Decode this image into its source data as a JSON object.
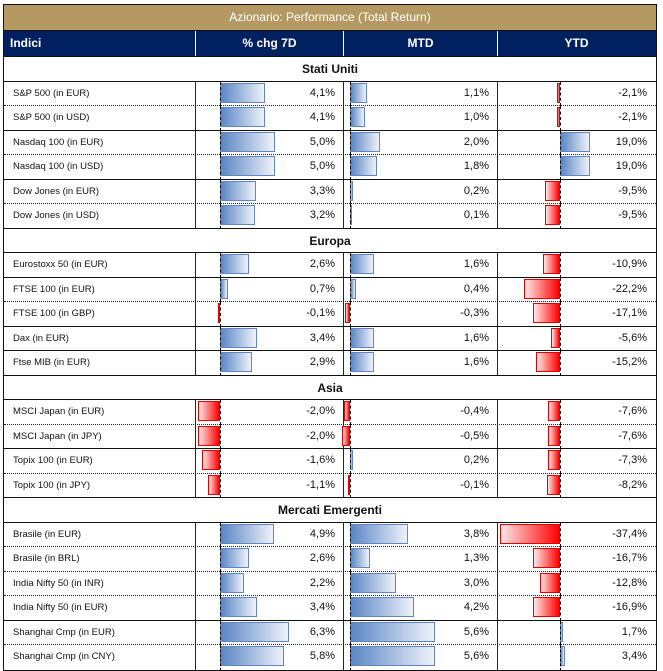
{
  "title": "Azionario: Performance (Total Return)",
  "columns": [
    "Indici",
    "% chg 7D",
    "MTD",
    "YTD"
  ],
  "colors": {
    "title_bg": "#b49a62",
    "header_bg": "#002060",
    "positive": "#5a86c5",
    "negative": "#ff0000"
  },
  "sections": [
    {
      "name": "Stati Uniti",
      "rows": [
        {
          "label": "S&P 500 (in EUR)",
          "d7": "4,1%",
          "mtd": "1,1%",
          "ytd": "-2,1%",
          "v": [
            4.1,
            1.1,
            -2.1
          ]
        },
        {
          "label": "S&P 500 (in USD)",
          "d7": "4,1%",
          "mtd": "1,0%",
          "ytd": "-2,1%",
          "v": [
            4.1,
            1.0,
            -2.1
          ]
        },
        {
          "label": "Nasdaq 100 (in EUR)",
          "d7": "5,0%",
          "mtd": "2,0%",
          "ytd": "19,0%",
          "v": [
            5.0,
            2.0,
            19.0
          ]
        },
        {
          "label": "Nasdaq 100 (in USD)",
          "d7": "5,0%",
          "mtd": "1,8%",
          "ytd": "19,0%",
          "v": [
            5.0,
            1.8,
            19.0
          ]
        },
        {
          "label": "Dow Jones (in EUR)",
          "d7": "3,3%",
          "mtd": "0,2%",
          "ytd": "-9,5%",
          "v": [
            3.3,
            0.2,
            -9.5
          ]
        },
        {
          "label": "Dow Jones (in USD)",
          "d7": "3,2%",
          "mtd": "0,1%",
          "ytd": "-9,5%",
          "v": [
            3.2,
            0.1,
            -9.5
          ]
        }
      ]
    },
    {
      "name": "Europa",
      "rows": [
        {
          "label": "Eurostoxx 50 (in EUR)",
          "d7": "2,6%",
          "mtd": "1,6%",
          "ytd": "-10,9%",
          "v": [
            2.6,
            1.6,
            -10.9
          ]
        },
        {
          "label": "FTSE 100 (in EUR)",
          "d7": "0,7%",
          "mtd": "0,4%",
          "ytd": "-22,2%",
          "v": [
            0.7,
            0.4,
            -22.2
          ]
        },
        {
          "label": "FTSE 100 (in GBP)",
          "d7": "-0,1%",
          "mtd": "-0,3%",
          "ytd": "-17,1%",
          "v": [
            -0.1,
            -0.3,
            -17.1
          ]
        },
        {
          "label": "Dax (in EUR)",
          "d7": "3,4%",
          "mtd": "1,6%",
          "ytd": "-5,6%",
          "v": [
            3.4,
            1.6,
            -5.6
          ]
        },
        {
          "label": "Ftse MIB (in EUR)",
          "d7": "2,9%",
          "mtd": "1,6%",
          "ytd": "-15,2%",
          "v": [
            2.9,
            1.6,
            -15.2
          ]
        }
      ]
    },
    {
      "name": "Asia",
      "rows": [
        {
          "label": "MSCI Japan (in EUR)",
          "d7": "-2,0%",
          "mtd": "-0,4%",
          "ytd": "-7,6%",
          "v": [
            -2.0,
            -0.4,
            -7.6
          ]
        },
        {
          "label": "MSCI Japan (in JPY)",
          "d7": "-2,0%",
          "mtd": "-0,5%",
          "ytd": "-7,6%",
          "v": [
            -2.0,
            -0.5,
            -7.6
          ]
        },
        {
          "label": "Topix 100 (in EUR)",
          "d7": "-1,6%",
          "mtd": "0,2%",
          "ytd": "-7,3%",
          "v": [
            -1.6,
            0.2,
            -7.3
          ]
        },
        {
          "label": "Topix 100 (in JPY)",
          "d7": "-1,1%",
          "mtd": "-0,1%",
          "ytd": "-8,2%",
          "v": [
            -1.1,
            -0.1,
            -8.2
          ]
        }
      ]
    },
    {
      "name": "Mercati Emergenti",
      "rows": [
        {
          "label": "Brasile (in EUR)",
          "d7": "4,9%",
          "mtd": "3,8%",
          "ytd": "-37,4%",
          "v": [
            4.9,
            3.8,
            -37.4
          ]
        },
        {
          "label": "Brasile (in BRL)",
          "d7": "2,6%",
          "mtd": "1,3%",
          "ytd": "-16,7%",
          "v": [
            2.6,
            1.3,
            -16.7
          ]
        },
        {
          "label": "India Nifty 50 (in INR)",
          "d7": "2,2%",
          "mtd": "3,0%",
          "ytd": "-12,8%",
          "v": [
            2.2,
            3.0,
            -12.8
          ]
        },
        {
          "label": "India Nifty 50 (in EUR)",
          "d7": "3,4%",
          "mtd": "4,2%",
          "ytd": "-16,9%",
          "v": [
            3.4,
            4.2,
            -16.9
          ]
        },
        {
          "label": "Shanghai Cmp (in EUR)",
          "d7": "6,3%",
          "mtd": "5,6%",
          "ytd": "1,7%",
          "v": [
            6.3,
            5.6,
            1.7
          ]
        },
        {
          "label": "Shanghai Cmp (in CNY)",
          "d7": "5,8%",
          "mtd": "5,6%",
          "ytd": "3,4%",
          "v": [
            5.8,
            5.6,
            3.4
          ]
        }
      ]
    }
  ]
}
